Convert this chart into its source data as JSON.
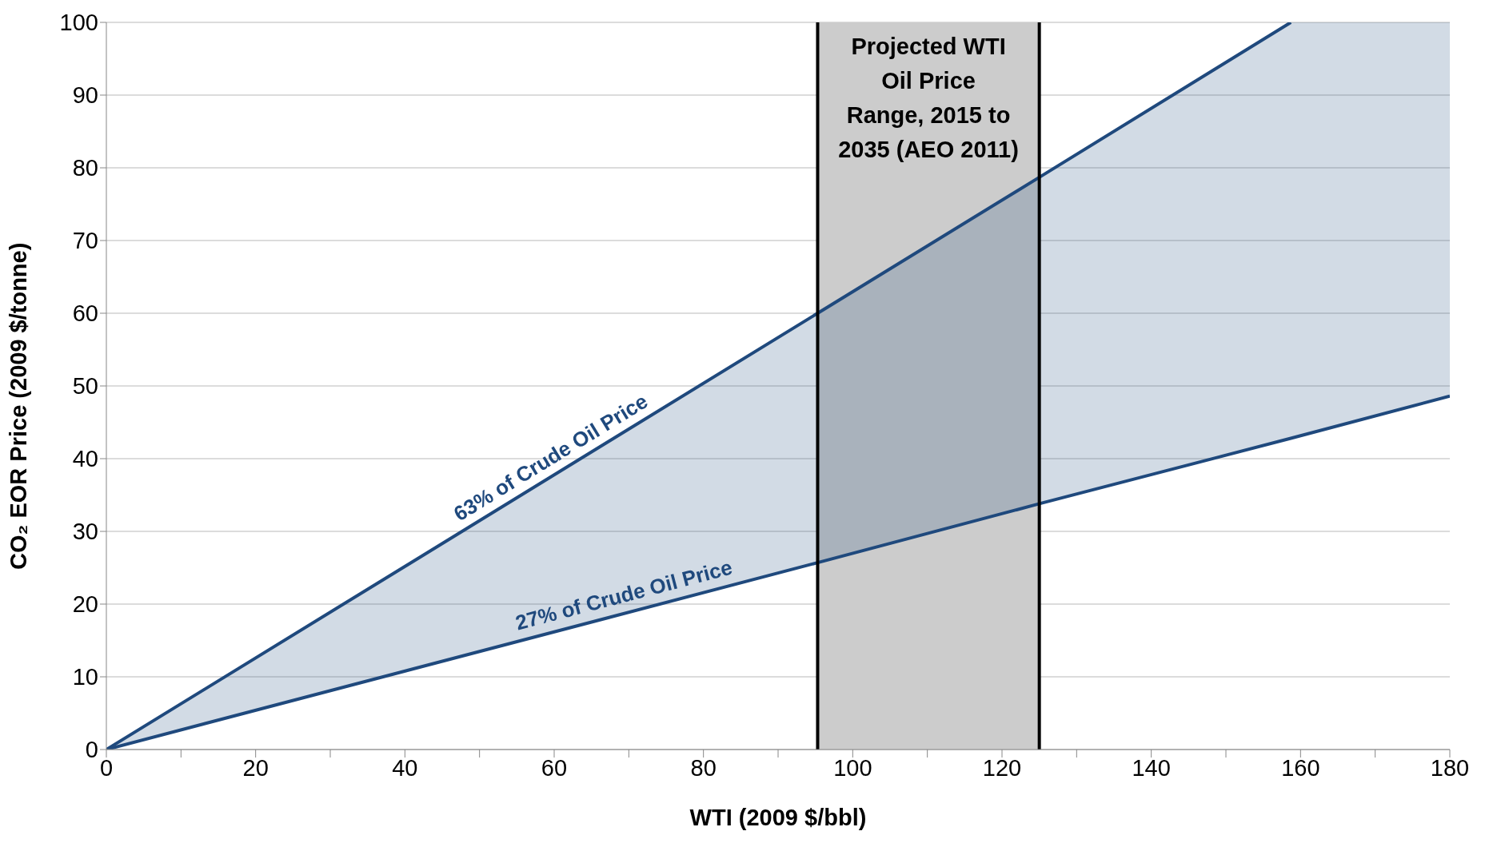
{
  "chart_data": {
    "type": "line",
    "xlabel": "WTI (2009 $/bbl)",
    "ylabel": "CO₂ EOR Price (2009 $/tonne)",
    "xlim": [
      0,
      180
    ],
    "xticks": [
      0,
      {
        "value": 10,
        "label": null
      },
      20,
      {
        "value": 30,
        "label": null
      },
      40,
      {
        "value": 50,
        "label": null
      },
      60,
      {
        "value": 70,
        "label": null
      },
      80,
      {
        "value": 90,
        "label": null
      },
      100,
      {
        "value": 110,
        "label": null
      },
      120,
      {
        "value": 130,
        "label": null
      },
      140,
      {
        "value": 150,
        "label": null
      },
      160,
      {
        "value": 170,
        "label": null
      },
      180
    ],
    "ylim": [
      0,
      100
    ],
    "yticks": [
      0,
      10,
      20,
      30,
      40,
      50,
      60,
      70,
      80,
      90,
      100
    ],
    "grid": "y",
    "legend": false,
    "marker": "none",
    "line_style": "solid",
    "series": [
      {
        "name": "63% of Crude Oil Price",
        "color": "#1f497d",
        "x": [
          0,
          95.3,
          125,
          158.7
        ],
        "values": [
          0,
          60,
          78.7,
          100
        ]
      },
      {
        "name": "27% of Crude Oil Price",
        "color": "#1f497d",
        "x": [
          0,
          95.3,
          125,
          158.7,
          180
        ],
        "values": [
          0,
          25.7,
          33.8,
          42.8,
          48.6
        ],
        "lower": [
          0,
          25.7,
          33.8,
          42.8,
          48.6
        ],
        "upper": [
          0,
          60,
          78.7,
          100,
          100
        ]
      }
    ],
    "ref_lines": [
      {
        "axis": "x",
        "value": 95.3,
        "color": "#000000"
      },
      {
        "axis": "x",
        "value": 125,
        "color": "#000000"
      }
    ],
    "bands": [
      {
        "axis": "x",
        "from": 95.3,
        "to": 125,
        "label": "Projected WTI Oil Price Range, 2015 to 2035 (AEO 2011)",
        "color": "#cccccc"
      }
    ]
  }
}
